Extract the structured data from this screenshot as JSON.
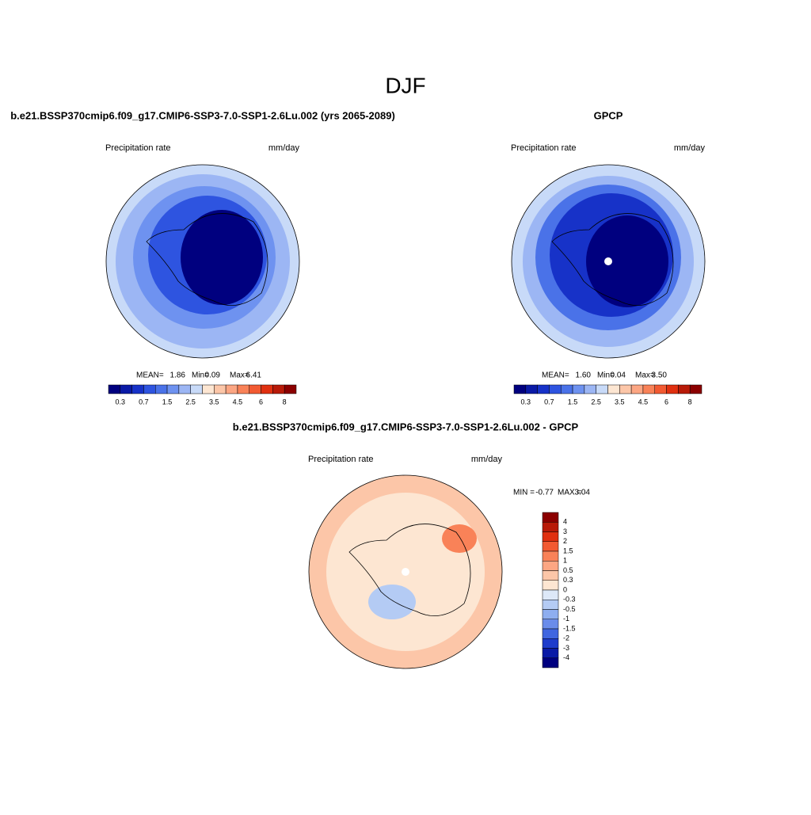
{
  "title": "DJF",
  "panels": [
    {
      "title": "b.e21.BSSP370cmip6.f09_g17.CMIP6-SSP3-7.0-SSP1-2.6Lu.002 (yrs 2065-2089)",
      "left_label": "Precipitation rate",
      "right_label": "mm/day",
      "stats": [
        {
          "name": "MEAN=",
          "value": "1.86"
        },
        {
          "name": "Min=",
          "value": "0.09"
        },
        {
          "name": "Max=",
          "value": "6.41"
        }
      ]
    },
    {
      "title": "GPCP",
      "left_label": "Precipitation rate",
      "right_label": "mm/day",
      "stats": [
        {
          "name": "MEAN=",
          "value": "1.60"
        },
        {
          "name": "Min=",
          "value": "0.04"
        },
        {
          "name": "Max=",
          "value": "3.50"
        }
      ]
    }
  ],
  "difference": {
    "title": "b.e21.BSSP370cmip6.f09_g17.CMIP6-SSP3-7.0-SSP1-2.6Lu.002 - GPCP",
    "left_label": "Precipitation rate",
    "right_label": "mm/day",
    "stats": [
      {
        "name": "MIN =",
        "value": "-0.77"
      },
      {
        "name": "MAX =",
        "value": "3.04"
      }
    ]
  },
  "colorbar": {
    "colors": [
      "#00007f",
      "#0a1aa6",
      "#1732c8",
      "#2e54e0",
      "#4a72e8",
      "#6e92f0",
      "#9cb6f4",
      "#c8daf8",
      "#fde6d2",
      "#fcc6a8",
      "#fca683",
      "#f98258",
      "#f25a32",
      "#e03010",
      "#b81a08",
      "#8b0000"
    ],
    "labels": [
      0.3,
      0.7,
      1.5,
      2.5,
      3.5,
      4.5,
      6,
      8
    ]
  },
  "difference_colorbar": {
    "colors": [
      "#8b0000",
      "#b81a08",
      "#e03010",
      "#f25a32",
      "#f98258",
      "#fca683",
      "#fcc6a8",
      "#fde6d2",
      "#dde8f8",
      "#b4cbf4",
      "#8eaef0",
      "#6a8cea",
      "#4066e0",
      "#1e3ccc",
      "#0a1aa6",
      "#00007f"
    ],
    "labels": [
      4,
      3,
      2,
      1.5,
      1,
      0.5,
      0.3,
      0,
      -0.3,
      -0.5,
      -1,
      -1.5,
      -2,
      -3,
      -4
    ]
  }
}
